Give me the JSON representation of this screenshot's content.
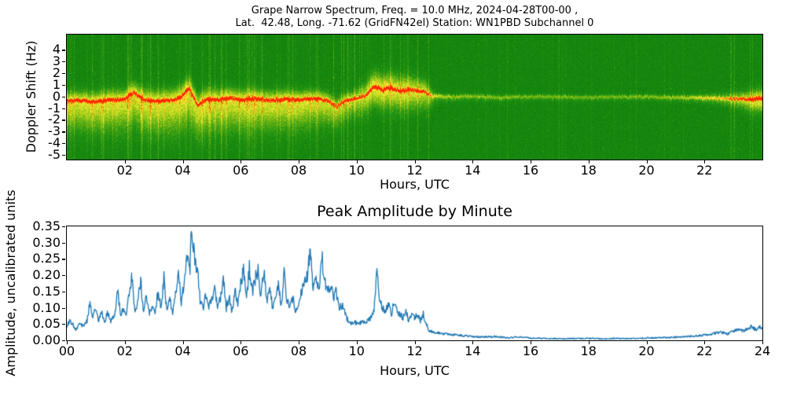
{
  "figure": {
    "background": "#ffffff",
    "text_color": "#000000"
  },
  "chart_data": [
    {
      "type": "heatmap",
      "title_line1": "Grape Narrow Spectrum, Freq. = 10.0 MHz, 2024-04-28T00-00 ,",
      "title_line2": "Lat.  42.48, Long. -71.62 (GridFN42el) Station: WN1PBD Subchannel 0",
      "xlabel": "Hours, UTC",
      "ylabel": "Doppler Shift (Hz)",
      "xlim": [
        0,
        24
      ],
      "ylim": [
        -5.4,
        5.3
      ],
      "xticks": [
        "02",
        "04",
        "06",
        "08",
        "10",
        "12",
        "14",
        "16",
        "18",
        "20",
        "22"
      ],
      "yticks": [
        "4",
        "3",
        "2",
        "1",
        "0",
        "-1",
        "-2",
        "-3",
        "-4",
        "-5"
      ],
      "legend": "none",
      "grid": false,
      "description": "Doppler spectrogram: green noise background, bright yellow band around 0 Hz with a red peak ridge; strong broad activity 00-12.5 UTC with vertical streaks, quiet thin yellow line 13-21 UTC, signal brightening again 22-24 UTC ending in red/yellow patch.",
      "colormap_stops": [
        {
          "v": 0.0,
          "c": "#0d7a0b"
        },
        {
          "v": 0.28,
          "c": "#1f9212"
        },
        {
          "v": 0.5,
          "c": "#6ab414"
        },
        {
          "v": 0.68,
          "c": "#c8dc1e"
        },
        {
          "v": 0.8,
          "c": "#f4ee3c"
        },
        {
          "v": 0.9,
          "c": "#ff9c0a"
        },
        {
          "v": 1.0,
          "c": "#ff2800"
        }
      ],
      "seed": 1337,
      "trace_t": [
        0,
        0.5,
        1,
        1.5,
        2,
        2.3,
        2.6,
        3,
        3.5,
        3.9,
        4.2,
        4.5,
        4.8,
        5.2,
        5.6,
        6,
        6.5,
        7,
        7.5,
        8,
        8.5,
        9,
        9.3,
        9.6,
        10,
        10.3,
        10.6,
        10.9,
        11.2,
        11.5,
        11.8,
        12.1,
        12.35,
        12.6,
        13,
        14,
        15,
        16,
        17,
        18,
        19,
        20,
        21,
        22,
        23,
        23.5,
        24
      ],
      "trace_hz": [
        -0.35,
        -0.3,
        -0.45,
        -0.25,
        -0.2,
        0.4,
        -0.2,
        -0.35,
        -0.3,
        -0.1,
        0.75,
        -0.75,
        -0.2,
        -0.25,
        -0.1,
        -0.25,
        -0.15,
        -0.3,
        -0.2,
        -0.25,
        -0.15,
        -0.3,
        -0.85,
        -0.3,
        -0.15,
        0.1,
        0.9,
        0.6,
        0.75,
        0.5,
        0.6,
        0.5,
        0.45,
        0.05,
        0,
        0,
        -0.05,
        0,
        0,
        -0.05,
        0,
        0,
        -0.05,
        -0.1,
        -0.15,
        -0.2,
        -0.15
      ],
      "intensity_t": [
        0,
        1,
        2,
        3,
        4,
        5,
        6,
        7,
        8,
        9,
        9.8,
        10.3,
        10.6,
        11,
        11.5,
        12,
        12.4,
        12.7,
        13,
        14,
        15,
        16,
        17,
        18,
        19,
        20,
        21,
        21.5,
        22,
        22.5,
        23,
        23.4,
        23.7,
        24
      ],
      "intensity_v": [
        0.88,
        0.9,
        0.92,
        0.9,
        0.95,
        0.9,
        0.92,
        0.9,
        0.92,
        0.85,
        0.75,
        0.8,
        1.0,
        0.95,
        0.9,
        0.88,
        0.8,
        0.45,
        0.38,
        0.33,
        0.32,
        0.3,
        0.3,
        0.3,
        0.3,
        0.32,
        0.35,
        0.4,
        0.5,
        0.55,
        0.65,
        0.8,
        0.95,
        1.0
      ],
      "spread_below_t": [
        0,
        2,
        4,
        6,
        8,
        9,
        9.8,
        10.5,
        11.5,
        12.4,
        12.7,
        13,
        15,
        18,
        21,
        22,
        23,
        23.6,
        24
      ],
      "spread_below_hz": [
        1.7,
        1.8,
        2.0,
        1.8,
        1.7,
        1.4,
        1.0,
        1.1,
        1.2,
        1.0,
        0.4,
        0.3,
        0.25,
        0.22,
        0.25,
        0.3,
        0.45,
        0.7,
        0.8
      ],
      "spread_above_t": [
        0,
        2,
        4,
        6,
        8,
        9.8,
        10.6,
        11.5,
        12.4,
        12.7,
        13,
        15,
        18,
        21,
        22,
        23,
        23.6,
        24
      ],
      "spread_above_hz": [
        0.55,
        0.6,
        0.7,
        0.6,
        0.55,
        0.45,
        0.9,
        0.85,
        0.7,
        0.25,
        0.2,
        0.18,
        0.16,
        0.18,
        0.25,
        0.35,
        0.5,
        0.55
      ]
    },
    {
      "type": "line",
      "title": "Peak Amplitude by Minute",
      "xlabel": "Hours, UTC",
      "ylabel": "Amplitude, uncalibrated units",
      "xlim": [
        0,
        24
      ],
      "ylim": [
        0,
        0.35
      ],
      "xticks": [
        "00",
        "02",
        "04",
        "06",
        "08",
        "10",
        "12",
        "14",
        "16",
        "18",
        "20",
        "22",
        "24"
      ],
      "yticks": [
        "0.00",
        "0.05",
        "0.10",
        "0.15",
        "0.20",
        "0.25",
        "0.30",
        "0.35"
      ],
      "line_color": "#1f77b4",
      "legend": "none",
      "grid": false,
      "x": [
        0.0,
        0.1,
        0.2,
        0.3,
        0.45,
        0.6,
        0.7,
        0.8,
        0.9,
        1.0,
        1.1,
        1.2,
        1.3,
        1.4,
        1.5,
        1.6,
        1.7,
        1.75,
        1.85,
        1.95,
        2.05,
        2.15,
        2.25,
        2.35,
        2.45,
        2.55,
        2.65,
        2.75,
        2.85,
        2.95,
        3.05,
        3.15,
        3.25,
        3.35,
        3.45,
        3.55,
        3.65,
        3.75,
        3.85,
        3.95,
        4.05,
        4.15,
        4.25,
        4.3,
        4.4,
        4.5,
        4.6,
        4.7,
        4.8,
        4.9,
        5.0,
        5.1,
        5.2,
        5.3,
        5.4,
        5.5,
        5.6,
        5.7,
        5.8,
        5.9,
        6.0,
        6.1,
        6.2,
        6.3,
        6.4,
        6.5,
        6.6,
        6.7,
        6.8,
        6.9,
        7.0,
        7.1,
        7.2,
        7.3,
        7.4,
        7.5,
        7.6,
        7.7,
        7.8,
        7.9,
        8.0,
        8.1,
        8.2,
        8.3,
        8.4,
        8.5,
        8.6,
        8.7,
        8.8,
        8.9,
        9.0,
        9.1,
        9.2,
        9.3,
        9.4,
        9.5,
        9.6,
        9.7,
        9.8,
        9.9,
        10.0,
        10.1,
        10.2,
        10.3,
        10.4,
        10.5,
        10.6,
        10.7,
        10.8,
        10.9,
        11.0,
        11.1,
        11.2,
        11.3,
        11.4,
        11.5,
        11.6,
        11.7,
        11.8,
        11.9,
        12.0,
        12.1,
        12.2,
        12.3,
        12.4,
        12.5,
        12.7,
        13.0,
        13.3,
        13.6,
        14.0,
        14.4,
        14.8,
        15.2,
        15.6,
        16.0,
        16.5,
        17.0,
        17.5,
        18.0,
        18.5,
        19.0,
        19.5,
        20.0,
        20.5,
        21.0,
        21.4,
        21.8,
        22.1,
        22.4,
        22.6,
        22.8,
        23.0,
        23.2,
        23.35,
        23.5,
        23.65,
        23.8,
        23.9,
        24.0
      ],
      "y": [
        0.045,
        0.06,
        0.05,
        0.035,
        0.05,
        0.045,
        0.06,
        0.12,
        0.07,
        0.1,
        0.06,
        0.09,
        0.05,
        0.085,
        0.06,
        0.07,
        0.1,
        0.15,
        0.08,
        0.09,
        0.08,
        0.15,
        0.2,
        0.08,
        0.12,
        0.18,
        0.09,
        0.14,
        0.08,
        0.1,
        0.09,
        0.15,
        0.1,
        0.19,
        0.09,
        0.13,
        0.08,
        0.15,
        0.2,
        0.12,
        0.18,
        0.25,
        0.22,
        0.35,
        0.26,
        0.22,
        0.12,
        0.1,
        0.14,
        0.1,
        0.13,
        0.16,
        0.1,
        0.13,
        0.19,
        0.1,
        0.13,
        0.09,
        0.15,
        0.11,
        0.18,
        0.21,
        0.13,
        0.22,
        0.15,
        0.19,
        0.21,
        0.13,
        0.22,
        0.12,
        0.16,
        0.1,
        0.14,
        0.18,
        0.1,
        0.21,
        0.12,
        0.1,
        0.13,
        0.09,
        0.12,
        0.15,
        0.17,
        0.2,
        0.27,
        0.16,
        0.2,
        0.15,
        0.26,
        0.18,
        0.15,
        0.17,
        0.13,
        0.15,
        0.1,
        0.11,
        0.08,
        0.06,
        0.05,
        0.06,
        0.05,
        0.05,
        0.06,
        0.05,
        0.06,
        0.07,
        0.1,
        0.22,
        0.12,
        0.1,
        0.09,
        0.11,
        0.08,
        0.12,
        0.09,
        0.08,
        0.07,
        0.09,
        0.06,
        0.08,
        0.07,
        0.08,
        0.06,
        0.08,
        0.05,
        0.03,
        0.025,
        0.02,
        0.018,
        0.015,
        0.012,
        0.01,
        0.012,
        0.008,
        0.01,
        0.007,
        0.006,
        0.005,
        0.005,
        0.006,
        0.005,
        0.006,
        0.005,
        0.007,
        0.008,
        0.01,
        0.012,
        0.014,
        0.018,
        0.022,
        0.025,
        0.02,
        0.028,
        0.033,
        0.028,
        0.038,
        0.042,
        0.03,
        0.04,
        0.038
      ]
    }
  ]
}
